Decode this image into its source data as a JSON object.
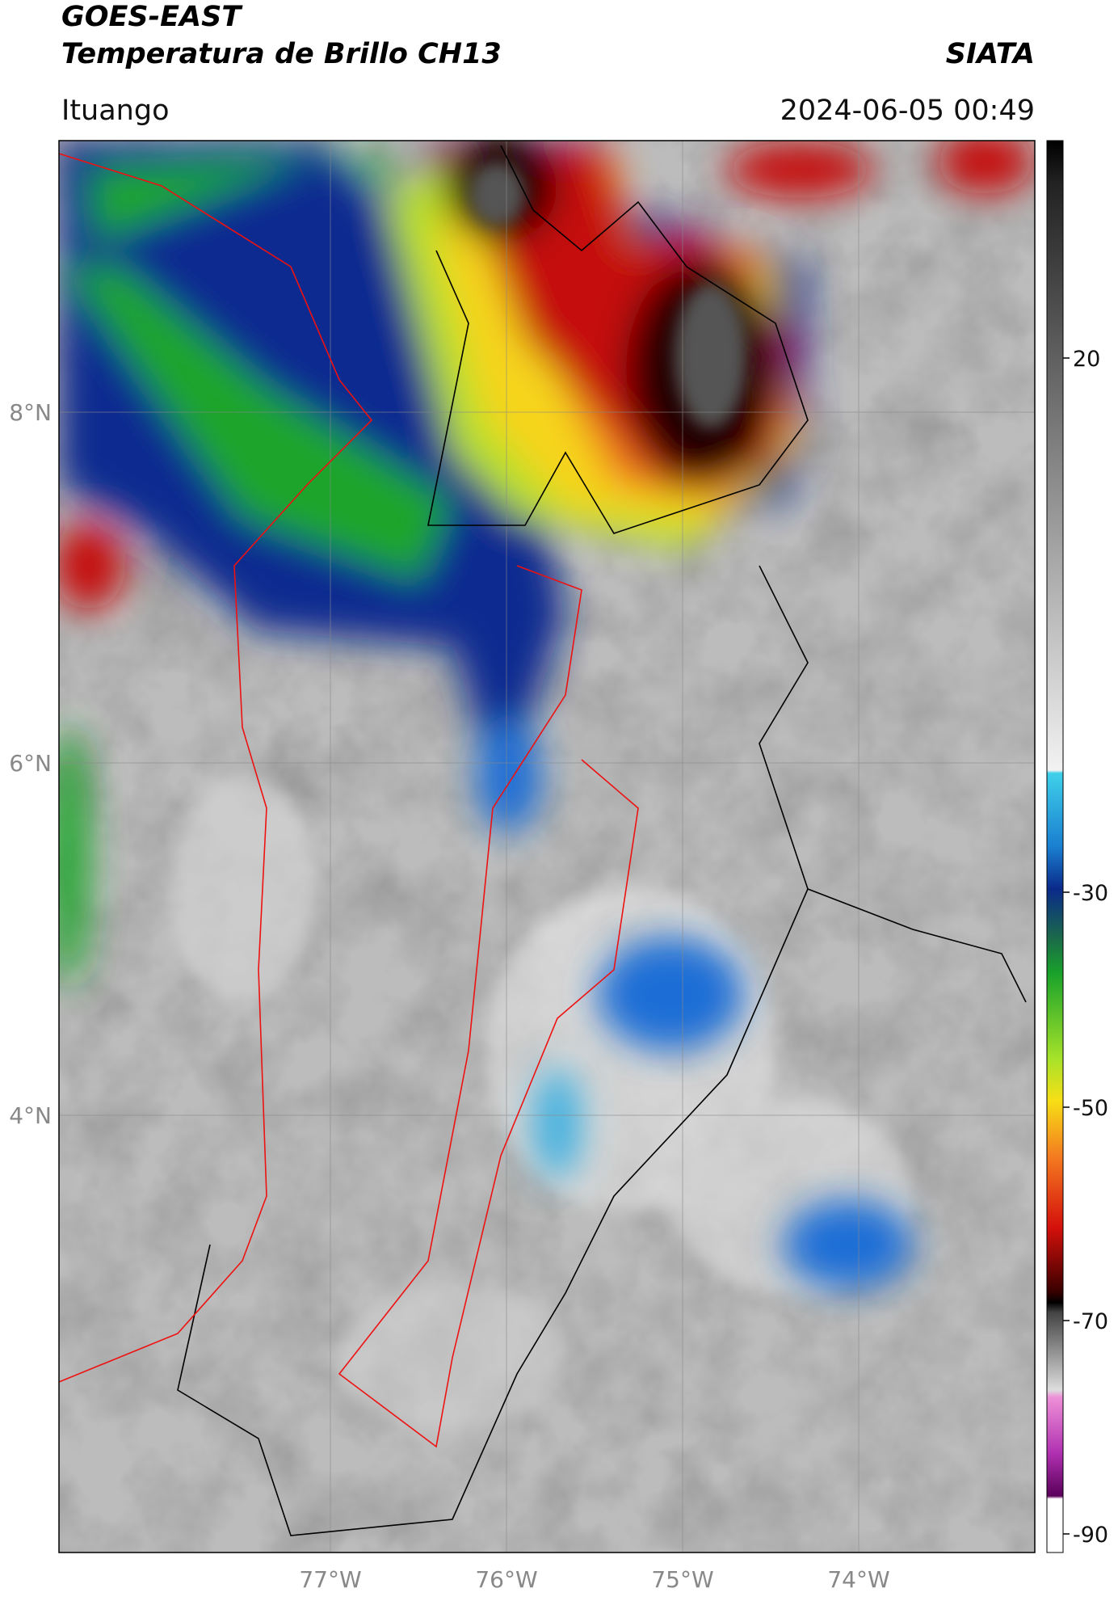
{
  "header": {
    "satellite": "GOES-EAST",
    "product": "Temperatura de Brillo CH13",
    "source": "SIATA",
    "location": "Ituango",
    "datetime": "2024-06-05 00:49"
  },
  "map": {
    "lat_labels": [
      "8°N",
      "6°N",
      "4°N"
    ],
    "lon_labels": [
      "77°W",
      "76°W",
      "75°W",
      "74°W"
    ]
  },
  "colorbar": {
    "ticks": [
      20,
      -30,
      -50,
      -70,
      -90
    ]
  }
}
